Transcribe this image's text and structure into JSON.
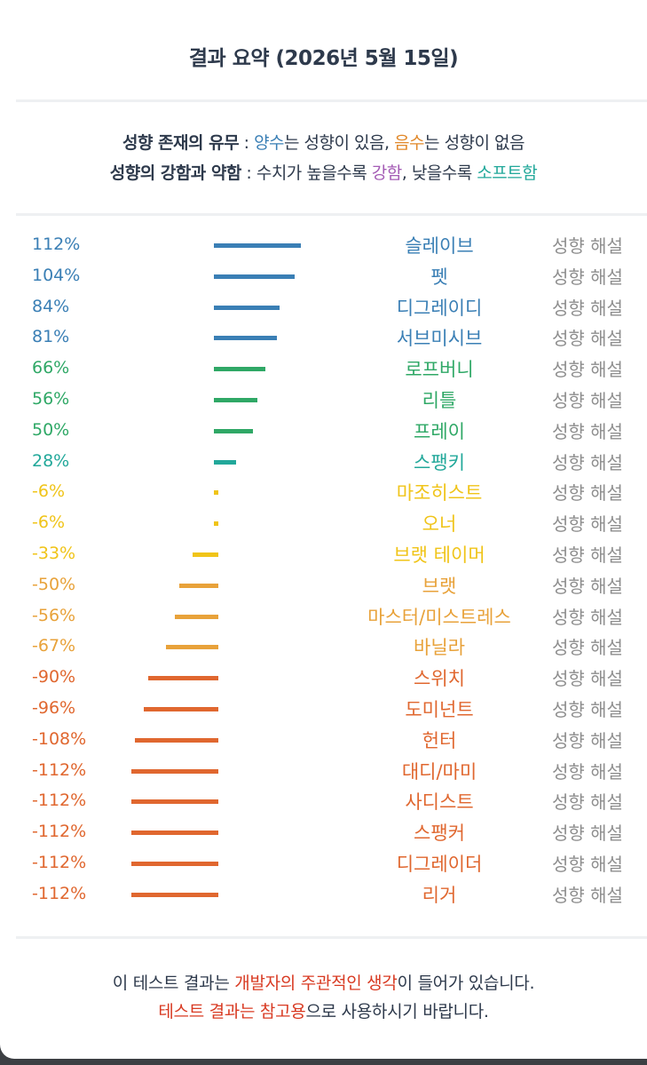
{
  "title": "결과 요약 (2026년 5월 15일)",
  "legend": {
    "line1": {
      "label": "성향 존재의 유무",
      "sep": " : ",
      "pos_word": "양수",
      "pos_rest": "는 성향이 있음, ",
      "neg_word": "음수",
      "neg_rest": "는 성향이 없음"
    },
    "line2": {
      "label": "성향의 강함과 약함",
      "sep": " : 수치가 높을수록 ",
      "strong_word": "강함",
      "mid": ", 낮을수록 ",
      "soft_word": "소프트함"
    }
  },
  "colors": {
    "blue": "#3a7fb5",
    "green": "#2fa866",
    "teal": "#22a89a",
    "yellow": "#f0c419",
    "orange": "#e8a23a",
    "red_orange": "#e0672f",
    "gray": "#8e8e8e",
    "dark": "#2e3a4c",
    "red": "#d83a22"
  },
  "explain_label": "성향 해설",
  "chart_data": {
    "type": "bar",
    "orientation": "horizontal",
    "categories": [
      "슬레이브",
      "펫",
      "디그레이디",
      "서브미시브",
      "로프버니",
      "리틀",
      "프레이",
      "스팽키",
      "마조히스트",
      "오너",
      "브랫 테이머",
      "브랫",
      "마스터/미스트레스",
      "바닐라",
      "스위치",
      "도미넌트",
      "헌터",
      "대디/마미",
      "사디스트",
      "스팽커",
      "디그레이더",
      "리거"
    ],
    "values": [
      112,
      104,
      84,
      81,
      66,
      56,
      50,
      28,
      -6,
      -6,
      -33,
      -50,
      -56,
      -67,
      -90,
      -96,
      -108,
      -112,
      -112,
      -112,
      -112,
      -112
    ],
    "labels": [
      "112%",
      "104%",
      "84%",
      "81%",
      "66%",
      "56%",
      "50%",
      "28%",
      "-6%",
      "-6%",
      "-33%",
      "-50%",
      "-56%",
      "-67%",
      "-90%",
      "-96%",
      "-108%",
      "-112%",
      "-112%",
      "-112%",
      "-112%",
      "-112%"
    ],
    "colors": [
      "#3a7fb5",
      "#3a7fb5",
      "#3a7fb5",
      "#3a7fb5",
      "#2fa866",
      "#2fa866",
      "#2fa866",
      "#22a89a",
      "#f0c419",
      "#f0c419",
      "#f0c419",
      "#e8a23a",
      "#e8a23a",
      "#e8a23a",
      "#e0672f",
      "#e0672f",
      "#e0672f",
      "#e0672f",
      "#e0672f",
      "#e0672f",
      "#e0672f",
      "#e0672f"
    ],
    "unit": "%"
  },
  "footer": {
    "line1": {
      "a": "이 테스트 결과는 ",
      "b": "개발자의 주관적인 생각",
      "c": "이 들어가 있습니다."
    },
    "line2": {
      "a": "테스트 결과는 참고용",
      "b": "으로 사용하시기 바랍니다."
    }
  }
}
